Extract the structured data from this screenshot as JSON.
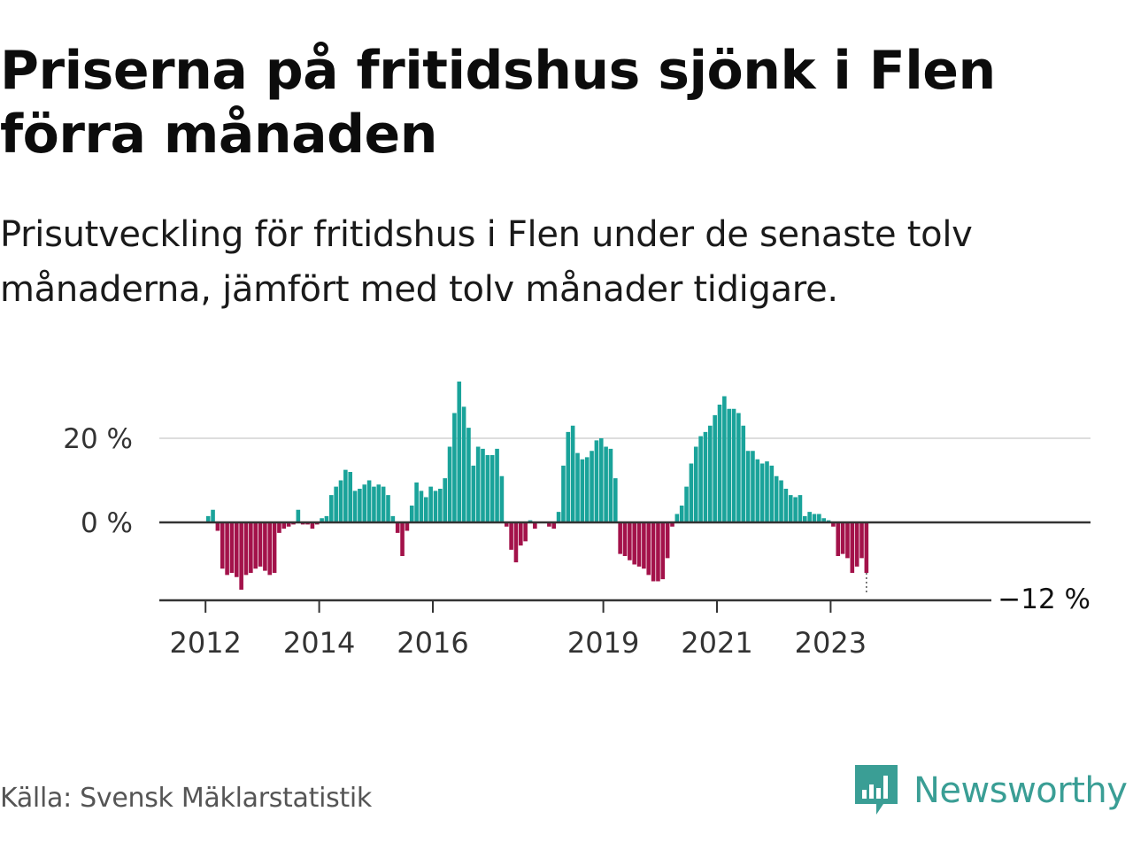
{
  "header": {
    "title": "Priserna på fritidshus sjönk i Flen förra månaden",
    "subtitle": "Prisutveckling för fritidshus i Flen under de senaste tolv månaderna, jämfört med tolv månader tidigare."
  },
  "footer": {
    "source": "Källa: Svensk Mäklarstatistik",
    "brand": "Newsworthy",
    "brand_icon": "bar-chart-speech-bubble-icon"
  },
  "colors": {
    "positive": "#1aa39a",
    "negative": "#a3124a",
    "axis": "#333333",
    "grid": "#dddddd",
    "brand": "#3a9e95"
  },
  "chart_data": {
    "type": "bar",
    "title": "",
    "xlabel": "",
    "ylabel": "",
    "unit": "%",
    "ylim": [
      -19,
      33
    ],
    "grid": true,
    "legend": "none",
    "x_ticks": [
      "2012",
      "2014",
      "2016",
      "2019",
      "2021",
      "2023"
    ],
    "y_ticks": [
      "20 %",
      "0 %"
    ],
    "last_value_label": "−12 %",
    "series": [
      {
        "start": "2012-01",
        "values": [
          1.5,
          3,
          -2,
          -11,
          -12.5,
          -12,
          -13,
          -16,
          -12.5,
          -12,
          -11,
          -10.5,
          -11.5,
          -12.5,
          -12,
          -2.5,
          -1.5,
          -1,
          -0.5,
          3,
          -0.5,
          -0.5,
          -1.5,
          -0.5,
          1,
          1.5,
          6.5,
          8.5,
          10,
          12.5,
          12,
          7.5,
          8,
          9,
          10,
          8.5,
          9,
          8.5,
          6.5,
          1.5,
          -2.5,
          -8,
          -2,
          4,
          9.5,
          7.5,
          6,
          8.5,
          7.5,
          8,
          10.5,
          18,
          26,
          33.5,
          27.5,
          22.5,
          13.5,
          18,
          17.5,
          16,
          16,
          17.5,
          11,
          -1,
          -6.5,
          -9.5,
          -5.5,
          -4.5,
          0.5,
          -1.5,
          0,
          0,
          -1,
          -1.5,
          2.5,
          13.5,
          21.5,
          23,
          16.5,
          15,
          15.5,
          17,
          19.5,
          20,
          18,
          17.5,
          10.5,
          -7.5,
          -8,
          -9,
          -10,
          -10.5,
          -11,
          -12.5,
          -14,
          -14,
          -13.5,
          -8.5,
          -1,
          2,
          4,
          8.5,
          14,
          18,
          20.5,
          21.5,
          23,
          25.5,
          28,
          30,
          27,
          27,
          26,
          23,
          17,
          17,
          15,
          14,
          14.5,
          13.5,
          11,
          10,
          8,
          6.5,
          6,
          6.5,
          1.5,
          2.5,
          2,
          2,
          1,
          0.5,
          -1,
          -8,
          -7.5,
          -8.5,
          -12,
          -10.5,
          -8.5,
          -12
        ]
      }
    ]
  }
}
